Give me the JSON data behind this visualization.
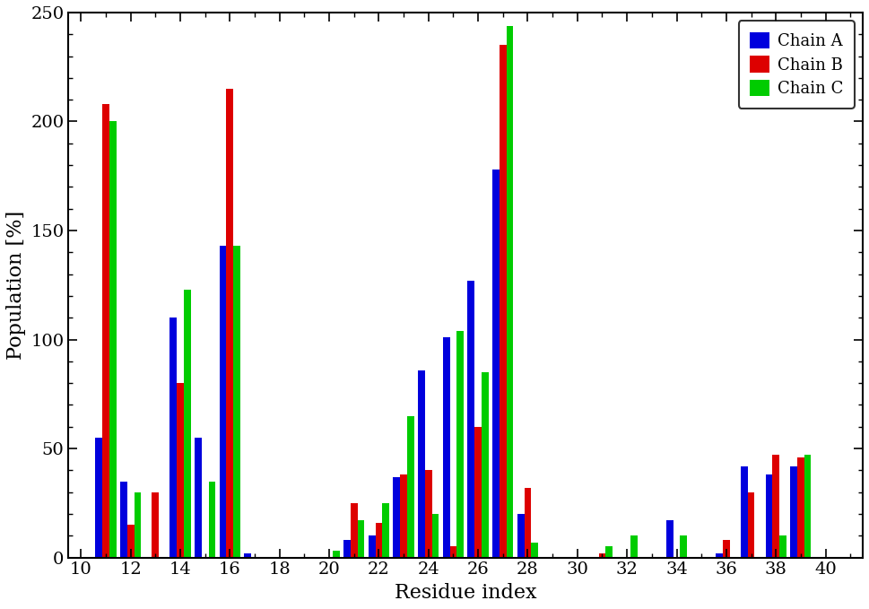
{
  "residues": [
    11,
    12,
    13,
    14,
    15,
    16,
    17,
    19,
    20,
    21,
    22,
    23,
    24,
    25,
    26,
    27,
    28,
    29,
    31,
    32,
    33,
    34,
    36,
    37,
    38,
    39,
    40
  ],
  "chain_A": [
    55,
    35,
    0,
    110,
    55,
    143,
    2,
    0,
    0,
    8,
    10,
    37,
    86,
    101,
    127,
    178,
    20,
    0,
    0,
    0,
    0,
    17,
    2,
    42,
    38,
    42,
    0
  ],
  "chain_B": [
    208,
    15,
    30,
    80,
    0,
    215,
    0,
    0,
    0,
    25,
    16,
    38,
    40,
    5,
    60,
    235,
    32,
    0,
    2,
    0,
    0,
    0,
    8,
    30,
    47,
    46,
    0
  ],
  "chain_C": [
    200,
    30,
    0,
    123,
    35,
    143,
    0,
    0,
    3,
    17,
    25,
    65,
    20,
    104,
    85,
    244,
    7,
    0,
    5,
    10,
    0,
    10,
    0,
    0,
    10,
    47,
    0
  ],
  "bar_colors": [
    "#0000dd",
    "#dd0000",
    "#00cc00"
  ],
  "legend_labels": [
    "Chain A",
    "Chain B",
    "Chain C"
  ],
  "xlabel": "Residue index",
  "ylabel": "Population [%]",
  "ylim": [
    0,
    250
  ],
  "yticks": [
    0,
    50,
    100,
    150,
    200,
    250
  ],
  "xticks": [
    10,
    12,
    14,
    16,
    18,
    20,
    22,
    24,
    26,
    28,
    30,
    32,
    34,
    36,
    38,
    40
  ],
  "xlim": [
    9.5,
    41.5
  ],
  "bar_width": 0.28,
  "background_color": "#ffffff"
}
